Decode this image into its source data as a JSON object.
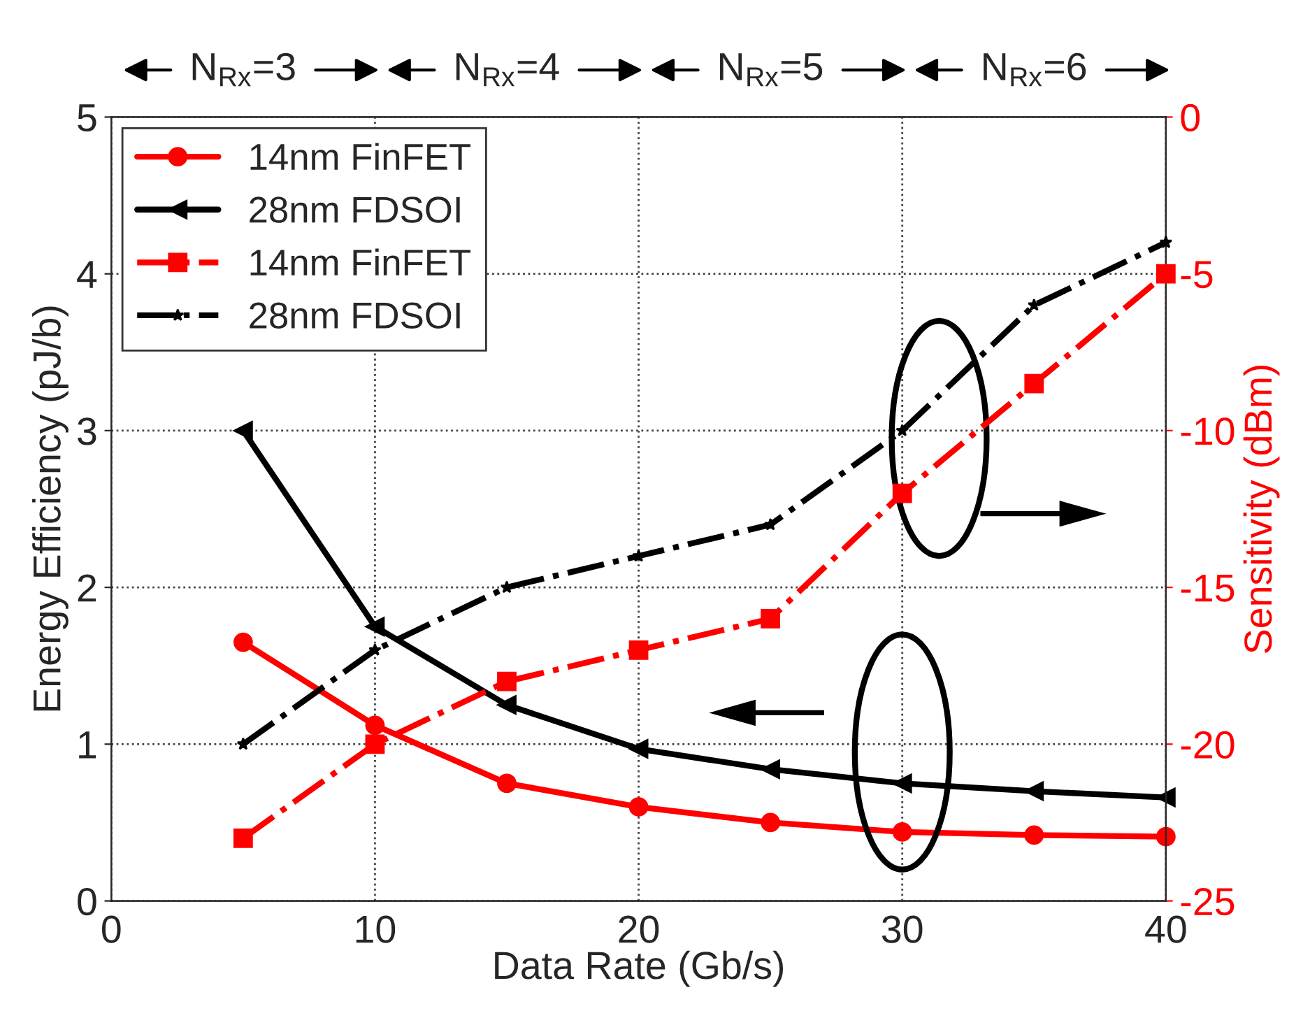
{
  "chart_data": {
    "type": "line",
    "xlabel": "Data Rate (Gb/s)",
    "ylabel": "Energy Efficiency (pJ/b)",
    "y2label": "Sensitivity (dBm)",
    "x": [
      5,
      10,
      15,
      20,
      25,
      30,
      35,
      40
    ],
    "series": [
      {
        "name": "14nm FinFET",
        "color": "#ff0000",
        "marker": "circle",
        "line_style": "solid",
        "values": [
          1.65,
          1.12,
          0.75,
          0.6,
          0.5,
          0.44,
          0.42,
          0.41
        ]
      },
      {
        "name": "28nm FDSOI",
        "color": "#000000",
        "marker": "triangle",
        "line_style": "solid",
        "values": [
          3.0,
          1.75,
          1.25,
          0.97,
          0.84,
          0.75,
          0.7,
          0.66
        ]
      },
      {
        "name": "14nm FinFET",
        "color": "#ff0000",
        "marker": "square",
        "line_style": "dashdot",
        "axis": "y2",
        "values": [
          -23,
          -20,
          -18,
          -17,
          -16,
          -12,
          -8.5,
          -5
        ]
      },
      {
        "name": "28nm FDSOI",
        "color": "#000000",
        "marker": "star",
        "line_style": "dashdot",
        "axis": "y2",
        "values": [
          -20,
          -17,
          -15,
          -14,
          -13,
          -10,
          -6,
          -4
        ]
      }
    ],
    "xlim": [
      0,
      40
    ],
    "xticks": [
      0,
      10,
      20,
      30,
      40
    ],
    "ylim": [
      0,
      5
    ],
    "yticks": [
      0,
      1,
      2,
      3,
      4,
      5
    ],
    "y2lim": [
      -25,
      0
    ],
    "y2ticks": [
      -25,
      -20,
      -15,
      -10,
      -5,
      0
    ],
    "grid": true,
    "legend": "top left",
    "annotations": [
      "N$_{Rx}$=3",
      "N$_{Rx}$=4",
      "N$_{Rx}$=5",
      "N$_{Rx}$=6"
    ]
  }
}
